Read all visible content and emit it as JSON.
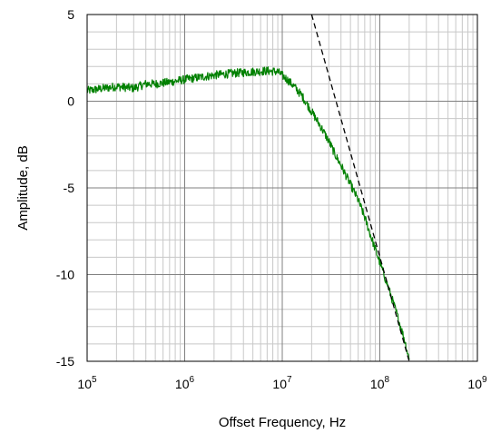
{
  "chart_data": {
    "type": "line",
    "xlabel": "Offset Frequency, Hz",
    "ylabel": "Amplitude, dB",
    "x_scale": "log",
    "xlim": [
      100000,
      1000000000
    ],
    "ylim": [
      -15,
      5
    ],
    "x_ticks": [
      {
        "base": "10",
        "exp": "5",
        "value": 100000
      },
      {
        "base": "10",
        "exp": "6",
        "value": 1000000
      },
      {
        "base": "10",
        "exp": "7",
        "value": 10000000
      },
      {
        "base": "10",
        "exp": "8",
        "value": 100000000
      },
      {
        "base": "10",
        "exp": "9",
        "value": 1000000000
      }
    ],
    "y_ticks": [
      {
        "label": "5",
        "value": 5
      },
      {
        "label": "0",
        "value": 0
      },
      {
        "label": "-5",
        "value": -5
      },
      {
        "label": "-10",
        "value": -10
      },
      {
        "label": "-15",
        "value": -15
      }
    ],
    "grid": true,
    "series": [
      {
        "style": "solid",
        "color": "#008000",
        "x": [
          100000,
          130000,
          200000,
          300000,
          400000,
          500000,
          700000,
          1000000,
          1500000,
          2000000,
          3000000,
          5000000,
          7000000,
          9000000,
          11000000,
          13000000,
          16000000,
          20000000,
          25000000,
          30000000,
          35000000,
          40000000,
          50000000,
          60000000,
          70000000,
          80000000,
          100000000,
          120000000,
          150000000,
          180000000,
          200000000
        ],
        "y": [
          0.6,
          0.7,
          0.85,
          0.75,
          1.0,
          1.0,
          1.1,
          1.25,
          1.4,
          1.5,
          1.6,
          1.7,
          1.75,
          1.7,
          1.3,
          0.9,
          0.3,
          -0.6,
          -1.5,
          -2.3,
          -3.1,
          -3.7,
          -4.8,
          -5.7,
          -6.7,
          -7.7,
          -9.3,
          -10.6,
          -12.3,
          -13.8,
          -14.9
        ]
      },
      {
        "style": "dashed",
        "color": "#000000",
        "x": [
          20000000,
          200000000
        ],
        "y": [
          5.0,
          -15.0
        ]
      }
    ]
  },
  "colors": {
    "frame": "#000000",
    "major_grid": "#808080",
    "minor_grid": "#c8c8c8",
    "measured_trace": "#008000",
    "asymptote": "#000000"
  }
}
